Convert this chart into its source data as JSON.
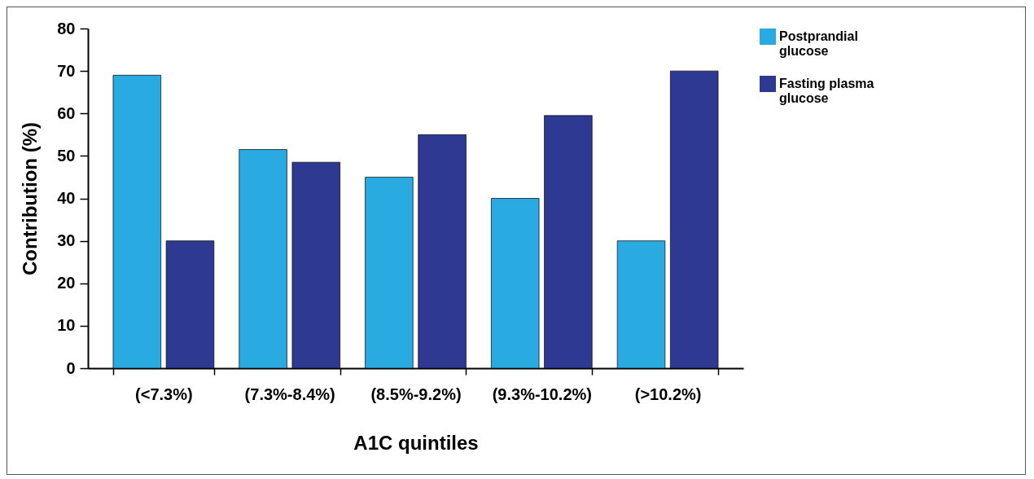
{
  "chart_data": {
    "type": "bar",
    "xlabel": "A1C quintiles",
    "ylabel": "Contribution (%)",
    "categories": [
      "(<7.3%)",
      "(7.3%-8.4%)",
      "(8.5%-9.2%)",
      "(9.3%-10.2%)",
      "(>10.2%)"
    ],
    "series": [
      {
        "name": "Postprandial glucose",
        "color": "#29abe2",
        "values": [
          69,
          51.5,
          45,
          40,
          30
        ]
      },
      {
        "name": "Fasting plasma glucose",
        "color": "#2e3a92",
        "values": [
          30,
          48.5,
          55,
          59.5,
          70
        ]
      }
    ],
    "ylim": [
      0,
      80
    ],
    "yticks": [
      0,
      10,
      20,
      30,
      40,
      50,
      60,
      70,
      80
    ],
    "grid": false,
    "legend": "right"
  }
}
